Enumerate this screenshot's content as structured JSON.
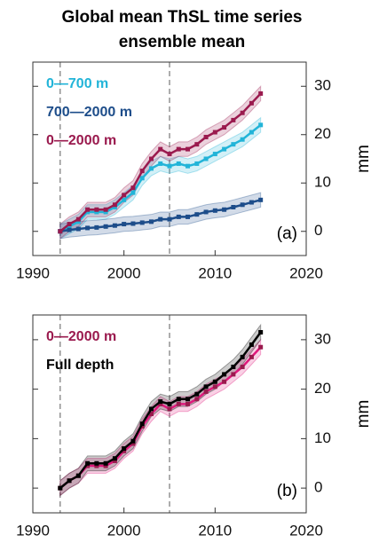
{
  "chart_data": [
    {
      "type": "line",
      "title": "Global mean ThSL time series",
      "subtitle": "ensemble mean",
      "ylabel": "mm",
      "annotation": "(a)",
      "x": [
        1993,
        1994,
        1995,
        1996,
        1997,
        1998,
        1999,
        2000,
        2001,
        2002,
        2003,
        2004,
        2005,
        2006,
        2007,
        2008,
        2009,
        2010,
        2011,
        2012,
        2013,
        2014,
        2015
      ],
      "series": [
        {
          "name": "0—700 m",
          "color": "#22b4d8",
          "values": [
            0,
            1,
            2,
            4,
            4,
            4,
            5,
            6.5,
            8,
            11,
            13,
            14,
            13.5,
            14,
            13.5,
            14,
            15,
            16,
            17,
            18,
            19,
            20.5,
            22
          ],
          "errors": [
            1.5,
            1.5,
            1.5,
            1.5,
            1.5,
            1.5,
            1.5,
            1.5,
            1.5,
            1.5,
            1.5,
            1.5,
            1.5,
            1.5,
            1.5,
            1.5,
            1.5,
            1.5,
            1.5,
            1.5,
            1.5,
            1.5,
            1.5
          ]
        },
        {
          "name": "700—2000 m",
          "color": "#1d4d8a",
          "values": [
            0,
            0.3,
            0.5,
            0.7,
            0.8,
            1,
            1.2,
            1.5,
            1.6,
            1.8,
            2,
            2.5,
            2.5,
            3,
            3,
            3.5,
            4,
            4.3,
            4.5,
            5,
            5.5,
            6,
            6.5
          ],
          "errors": [
            1.5,
            1.5,
            1.5,
            1.5,
            1.5,
            1.5,
            1.5,
            1.5,
            1.5,
            1.5,
            1.5,
            1.5,
            1.5,
            1.5,
            1.5,
            1.5,
            1.5,
            1.5,
            1.5,
            1.5,
            1.5,
            1.5,
            1.5
          ]
        },
        {
          "name": "0—2000 m",
          "color": "#9a1a4e",
          "values": [
            0,
            1.5,
            2.5,
            4.5,
            4.5,
            4.5,
            5.5,
            7.5,
            9,
            12.5,
            15,
            17,
            16,
            17,
            17,
            18,
            19.5,
            20.5,
            21.5,
            23,
            24.5,
            26.5,
            28.5
          ],
          "errors": [
            1.5,
            1.5,
            1.5,
            1.5,
            1.5,
            1.5,
            1.5,
            1.5,
            1.5,
            1.5,
            1.5,
            1.5,
            1.5,
            1.5,
            1.5,
            1.5,
            1.5,
            1.5,
            1.5,
            1.5,
            1.5,
            1.5,
            1.5
          ]
        }
      ],
      "xlim": [
        1990,
        2020
      ],
      "xticks": [
        1990,
        2000,
        2010,
        2020
      ],
      "ylim": [
        -5,
        35
      ],
      "yticks": [
        0,
        10,
        20,
        30
      ],
      "vlines": [
        1993,
        2005
      ]
    },
    {
      "type": "line",
      "ylabel": "mm",
      "annotation": "(b)",
      "x": [
        1993,
        1994,
        1995,
        1996,
        1997,
        1998,
        1999,
        2000,
        2001,
        2002,
        2003,
        2004,
        2005,
        2006,
        2007,
        2008,
        2009,
        2010,
        2011,
        2012,
        2013,
        2014,
        2015
      ],
      "series": [
        {
          "name": "0—2000 m",
          "color": "#9a1a4e",
          "line_color": "#e0187c",
          "values": [
            0,
            1.5,
            2.5,
            4.5,
            4.5,
            4.5,
            5.5,
            7.5,
            9,
            12.5,
            15,
            17,
            16,
            17,
            17,
            18,
            19.5,
            20.5,
            21.5,
            23,
            24.5,
            26.5,
            28.5
          ],
          "errors": [
            1.5,
            1.5,
            1.5,
            1.5,
            1.5,
            1.5,
            1.5,
            1.5,
            1.5,
            1.5,
            1.5,
            1.5,
            1.5,
            1.5,
            1.5,
            1.5,
            1.5,
            1.5,
            1.5,
            1.5,
            1.5,
            1.5,
            1.5
          ]
        },
        {
          "name": "Full depth",
          "color": "#000000",
          "values": [
            0,
            1.5,
            2.5,
            5,
            5,
            5,
            6,
            8,
            9.5,
            13,
            16,
            17.5,
            17,
            18,
            18,
            19,
            20.5,
            21.5,
            23,
            24.5,
            26.5,
            29,
            31.5
          ],
          "errors": [
            1.5,
            1.5,
            1.5,
            1.5,
            1.5,
            1.5,
            1.5,
            1.5,
            1.5,
            1.5,
            1.5,
            1.5,
            1.5,
            1.5,
            1.5,
            1.5,
            1.5,
            1.5,
            1.5,
            1.5,
            1.5,
            1.5,
            1.5
          ]
        }
      ],
      "xlim": [
        1990,
        2020
      ],
      "xticks": [
        1990,
        2000,
        2010,
        2020
      ],
      "ylim": [
        -5,
        35
      ],
      "yticks": [
        0,
        10,
        20,
        30
      ],
      "vlines": [
        1993,
        2005
      ]
    }
  ]
}
